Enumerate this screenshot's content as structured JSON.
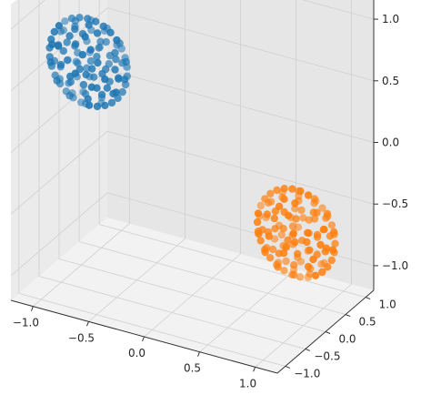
{
  "chart_data": {
    "type": "scatter",
    "dimensions": 3,
    "title": "",
    "grid": true,
    "legend": false,
    "axes": {
      "x": {
        "label": "",
        "lim": [
          -1.2,
          1.2
        ],
        "ticks": [
          -1.0,
          -0.5,
          0.0,
          0.5,
          1.0
        ],
        "tick_labels": [
          "−1.0",
          "−0.5",
          "0.0",
          "0.5",
          "1.0"
        ]
      },
      "y": {
        "label": "",
        "lim": [
          -1.2,
          1.2
        ],
        "ticks": [
          -1.0,
          -0.5,
          0.0,
          0.5,
          1.0
        ],
        "tick_labels": [
          "−1.0",
          "−0.5",
          "0.0",
          "0.5",
          "1.0"
        ]
      },
      "z": {
        "label": "",
        "lim": [
          -1.2,
          1.2
        ],
        "ticks": [
          -1.0,
          -0.5,
          0.0,
          0.5,
          1.0
        ],
        "tick_labels": [
          "−1.0",
          "−0.5",
          "0.0",
          "0.5",
          "1.0"
        ]
      }
    },
    "series": [
      {
        "color": "#1f77b4",
        "shape": "circle (filled disc)",
        "center": [
          -0.9,
          -0.1,
          0.5
        ],
        "approx_radius": 0.35
      },
      {
        "color": "#ff7f0e",
        "shape": "circle (filled disc)",
        "center": [
          0.9,
          0.1,
          -0.5
        ],
        "approx_radius": 0.35
      }
    ]
  }
}
